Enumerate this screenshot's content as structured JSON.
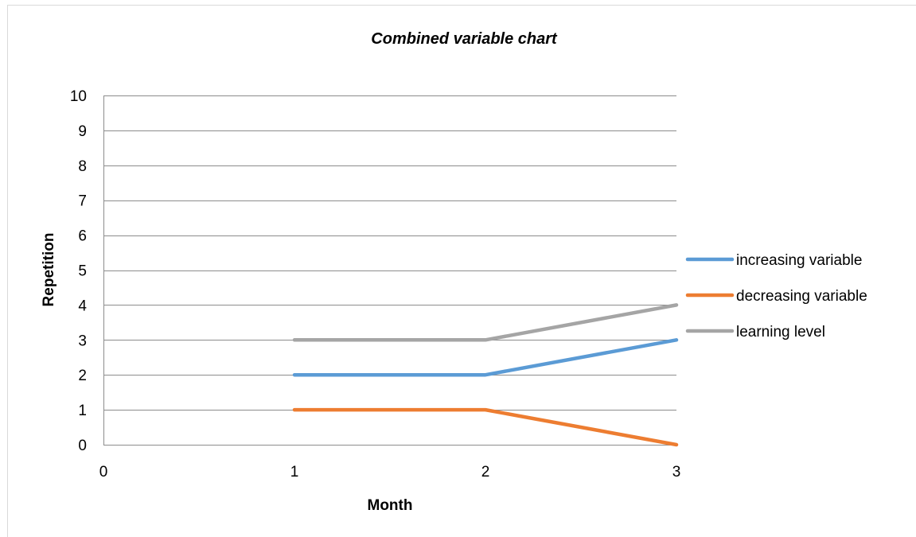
{
  "chart_data": {
    "type": "line",
    "title": "Combined variable chart",
    "xlabel": "Month",
    "ylabel": "Repetition",
    "x_ticks": [
      "0",
      "1",
      "2",
      "3"
    ],
    "y_ticks": [
      "0",
      "1",
      "2",
      "3",
      "4",
      "5",
      "6",
      "7",
      "8",
      "9",
      "10"
    ],
    "xlim": [
      0,
      3
    ],
    "ylim": [
      0,
      10
    ],
    "grid": "horizontal",
    "legend_position": "right",
    "x": [
      1,
      2,
      3
    ],
    "series": [
      {
        "name": "increasing variable",
        "values": [
          2,
          2,
          3
        ],
        "color": "#5B9BD5"
      },
      {
        "name": "decreasing variable",
        "values": [
          1,
          1,
          0
        ],
        "color": "#ED7D31"
      },
      {
        "name": "learning level",
        "values": [
          3,
          3,
          4
        ],
        "color": "#A5A5A5"
      }
    ]
  }
}
